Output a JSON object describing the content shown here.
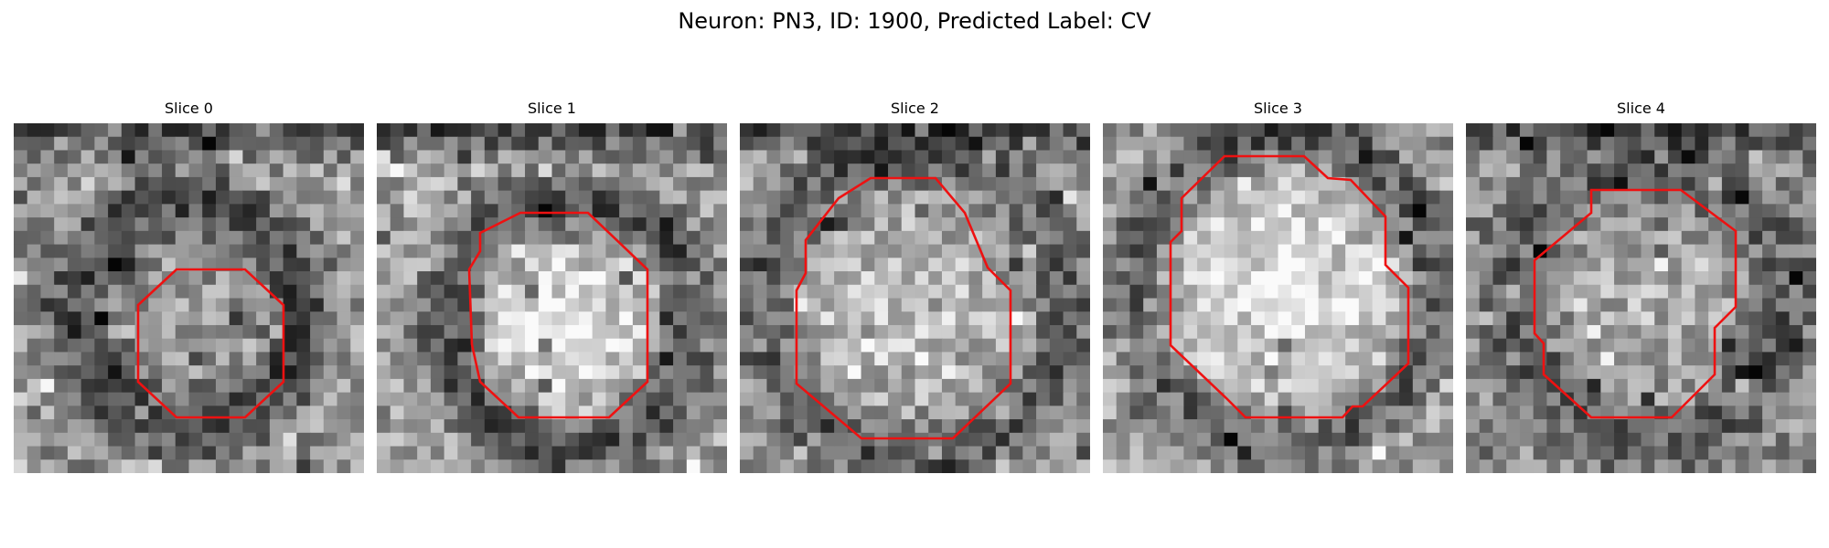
{
  "figure": {
    "title": "Neuron: PN3, ID: 1900, Predicted Label: CV"
  },
  "panels": [
    {
      "title": "Slice 0"
    },
    {
      "title": "Slice 1"
    },
    {
      "title": "Slice 2"
    },
    {
      "title": "Slice 3"
    },
    {
      "title": "Slice 4"
    }
  ],
  "colors": {
    "background": "#ffffff",
    "contour": "#ee1111",
    "image_colormap": "grayscale"
  }
}
